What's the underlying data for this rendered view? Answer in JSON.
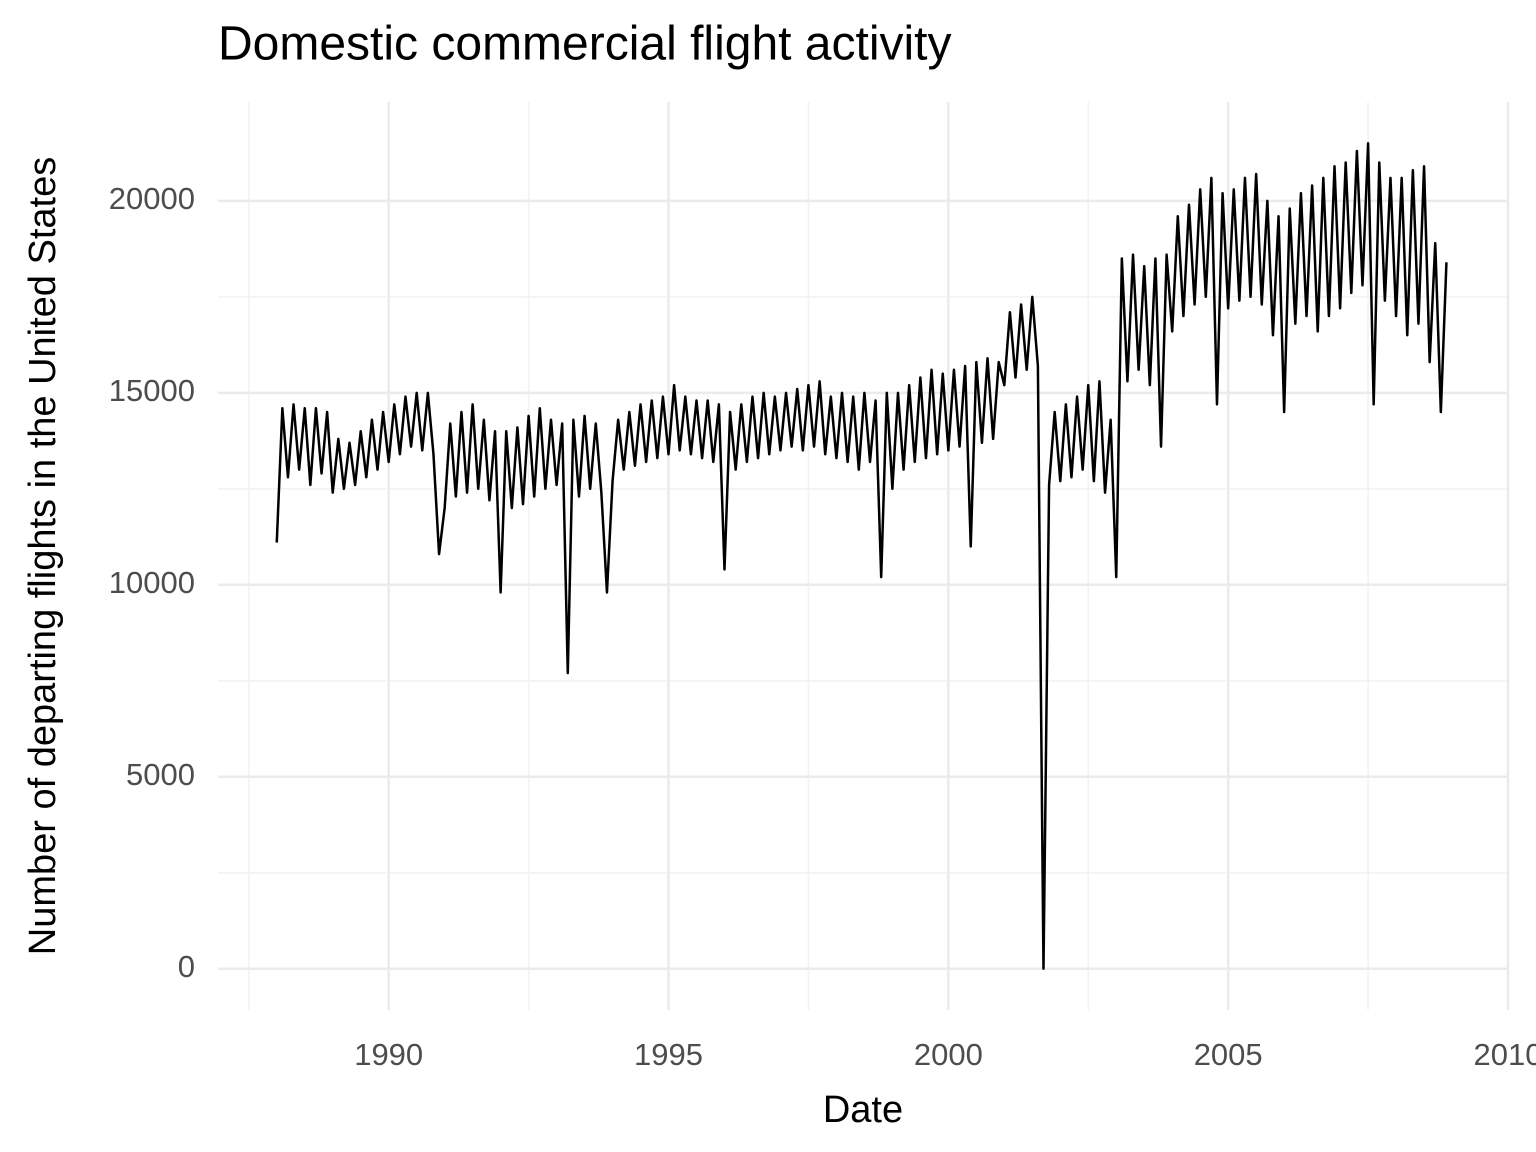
{
  "chart_data": {
    "type": "line",
    "title": "Domestic commercial flight activity",
    "x_label": "Date",
    "y_label": "Number of departing flights in the United States",
    "color": "#000000",
    "grid": true,
    "xlim": [
      1986.95,
      2010.0
    ],
    "xticks": [
      1990,
      1995,
      2000,
      2005,
      2010
    ],
    "xminor": [
      1987.5,
      1992.5,
      1997.5,
      2002.5,
      2007.5
    ],
    "ylim": [
      -1075,
      22575
    ],
    "yticks": [
      0,
      5000,
      10000,
      15000,
      20000
    ],
    "yminor": [
      2500,
      7500,
      12500,
      17500
    ],
    "x": [
      1988.0,
      1988.1,
      1988.2,
      1988.3,
      1988.4,
      1988.5,
      1988.6,
      1988.7,
      1988.8,
      1988.9,
      1989.0,
      1989.1,
      1989.2,
      1989.3,
      1989.4,
      1989.5,
      1989.6,
      1989.7,
      1989.8,
      1989.9,
      1990.0,
      1990.1,
      1990.2,
      1990.3,
      1990.4,
      1990.5,
      1990.6,
      1990.7,
      1990.8,
      1990.9,
      1991.0,
      1991.1,
      1991.2,
      1991.3,
      1991.4,
      1991.5,
      1991.6,
      1991.7,
      1991.8,
      1991.9,
      1992.0,
      1992.1,
      1992.2,
      1992.3,
      1992.4,
      1992.5,
      1992.6,
      1992.7,
      1992.8,
      1992.9,
      1993.0,
      1993.1,
      1993.2,
      1993.3,
      1993.4,
      1993.5,
      1993.6,
      1993.7,
      1993.8,
      1993.9,
      1994.0,
      1994.1,
      1994.2,
      1994.3,
      1994.4,
      1994.5,
      1994.6,
      1994.7,
      1994.8,
      1994.9,
      1995.0,
      1995.1,
      1995.2,
      1995.3,
      1995.4,
      1995.5,
      1995.6,
      1995.7,
      1995.8,
      1995.9,
      1996.0,
      1996.1,
      1996.2,
      1996.3,
      1996.4,
      1996.5,
      1996.6,
      1996.7,
      1996.8,
      1996.9,
      1997.0,
      1997.1,
      1997.2,
      1997.3,
      1997.4,
      1997.5,
      1997.6,
      1997.7,
      1997.8,
      1997.9,
      1998.0,
      1998.1,
      1998.2,
      1998.3,
      1998.4,
      1998.5,
      1998.6,
      1998.7,
      1998.8,
      1998.9,
      1999.0,
      1999.1,
      1999.2,
      1999.3,
      1999.4,
      1999.5,
      1999.6,
      1999.7,
      1999.8,
      1999.9,
      2000.0,
      2000.1,
      2000.2,
      2000.3,
      2000.4,
      2000.5,
      2000.6,
      2000.7,
      2000.8,
      2000.9,
      2001.0,
      2001.1,
      2001.2,
      2001.3,
      2001.4,
      2001.5,
      2001.6,
      2001.7,
      2001.8,
      2001.9,
      2002.0,
      2002.1,
      2002.2,
      2002.3,
      2002.4,
      2002.5,
      2002.6,
      2002.7,
      2002.8,
      2002.9,
      2003.0,
      2003.1,
      2003.2,
      2003.3,
      2003.4,
      2003.5,
      2003.6,
      2003.7,
      2003.8,
      2003.9,
      2004.0,
      2004.1,
      2004.2,
      2004.3,
      2004.4,
      2004.5,
      2004.6,
      2004.7,
      2004.8,
      2004.9,
      2005.0,
      2005.1,
      2005.2,
      2005.3,
      2005.4,
      2005.5,
      2005.6,
      2005.7,
      2005.8,
      2005.9,
      2006.0,
      2006.1,
      2006.2,
      2006.3,
      2006.4,
      2006.5,
      2006.6,
      2006.7,
      2006.8,
      2006.9,
      2007.0,
      2007.1,
      2007.2,
      2007.3,
      2007.4,
      2007.5,
      2007.6,
      2007.7,
      2007.8,
      2007.9,
      2008.0,
      2008.1,
      2008.2,
      2008.3,
      2008.4,
      2008.5,
      2008.6,
      2008.7,
      2008.8,
      2008.9
    ],
    "values": [
      11100,
      14600,
      12800,
      14700,
      13000,
      14600,
      12600,
      14600,
      12900,
      14500,
      12400,
      13800,
      12500,
      13700,
      12600,
      14000,
      12800,
      14300,
      13000,
      14500,
      13200,
      14700,
      13400,
      14900,
      13600,
      15000,
      13500,
      15000,
      13400,
      10800,
      12000,
      14200,
      12300,
      14500,
      12400,
      14700,
      12500,
      14300,
      12200,
      14000,
      9800,
      14000,
      12000,
      14100,
      12100,
      14400,
      12300,
      14600,
      12500,
      14300,
      12600,
      14200,
      7700,
      14300,
      12300,
      14400,
      12500,
      14200,
      12400,
      9800,
      12700,
      14300,
      13000,
      14500,
      13100,
      14700,
      13200,
      14800,
      13300,
      14900,
      13400,
      15200,
      13500,
      14900,
      13400,
      14800,
      13300,
      14800,
      13200,
      14700,
      10400,
      14500,
      13000,
      14700,
      13200,
      14900,
      13300,
      15000,
      13400,
      14900,
      13500,
      15000,
      13600,
      15100,
      13500,
      15200,
      13600,
      15300,
      13400,
      14900,
      13300,
      15000,
      13200,
      14900,
      13000,
      15000,
      13200,
      14800,
      10200,
      15000,
      12500,
      15000,
      13000,
      15200,
      13200,
      15400,
      13300,
      15600,
      13400,
      15500,
      13500,
      15600,
      13600,
      15700,
      11000,
      15800,
      13700,
      15900,
      13800,
      15800,
      15200,
      17100,
      15400,
      17300,
      15600,
      17500,
      15700,
      0,
      12600,
      14500,
      12700,
      14700,
      12800,
      14900,
      13000,
      15200,
      12700,
      15300,
      12400,
      14300,
      10200,
      18500,
      15300,
      18600,
      15600,
      18300,
      15200,
      18500,
      13600,
      18600,
      16600,
      19600,
      17000,
      19900,
      17300,
      20300,
      17500,
      20600,
      14700,
      20200,
      17200,
      20300,
      17400,
      20600,
      17500,
      20700,
      17300,
      20000,
      16500,
      19600,
      14500,
      19800,
      16800,
      20200,
      17000,
      20400,
      16600,
      20600,
      17000,
      20900,
      17200,
      21000,
      17600,
      21300,
      17800,
      21500,
      14700,
      21000,
      17400,
      20600,
      17000,
      20600,
      16500,
      20800,
      16800,
      20900,
      15800,
      18900,
      14500,
      18400
    ]
  }
}
